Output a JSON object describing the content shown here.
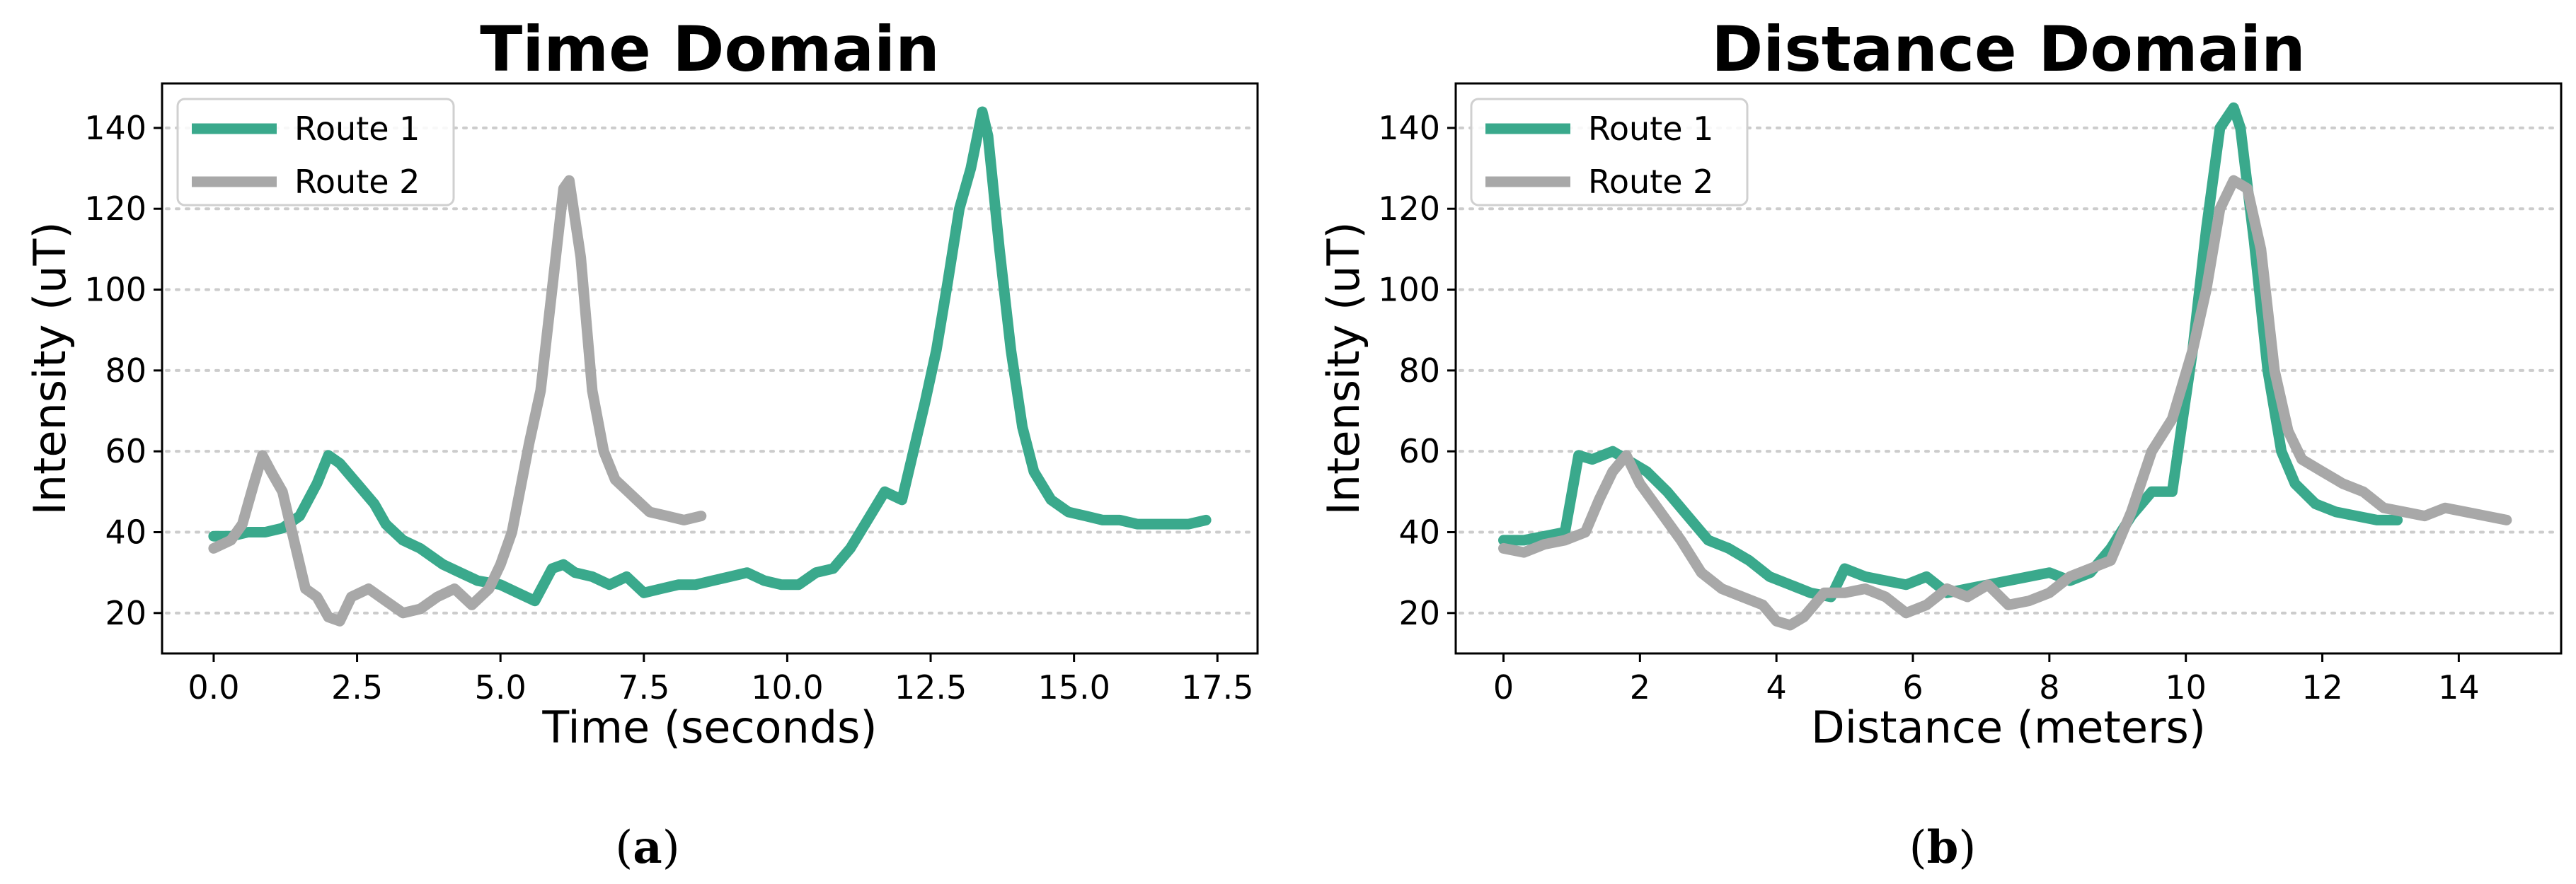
{
  "chart_data": [
    {
      "type": "line",
      "title": "Time Domain",
      "xlabel": "Time (seconds)",
      "ylabel": "Intensity (uT)",
      "caption_letter": "a",
      "xlim": [
        -0.9,
        18.2
      ],
      "ylim": [
        10,
        151
      ],
      "xticks": [
        0.0,
        2.5,
        5.0,
        7.5,
        10.0,
        12.5,
        15.0,
        17.5
      ],
      "xtick_labels": [
        "0.0",
        "2.5",
        "5.0",
        "7.5",
        "10.0",
        "12.5",
        "15.0",
        "17.5"
      ],
      "yticks": [
        20,
        40,
        60,
        80,
        100,
        120,
        140
      ],
      "ytick_labels": [
        "20",
        "40",
        "60",
        "80",
        "100",
        "120",
        "140"
      ],
      "grid": "y-dotted",
      "legend_position": "top-left",
      "series": [
        {
          "name": "Route 1",
          "color": "#3aa98c",
          "x": [
            0.0,
            0.3,
            0.6,
            0.9,
            1.2,
            1.5,
            1.8,
            2.0,
            2.2,
            2.5,
            2.8,
            3.0,
            3.3,
            3.6,
            4.0,
            4.3,
            4.6,
            5.0,
            5.3,
            5.6,
            5.9,
            6.1,
            6.3,
            6.6,
            6.9,
            7.2,
            7.5,
            7.8,
            8.1,
            8.4,
            8.7,
            9.0,
            9.3,
            9.6,
            9.9,
            10.2,
            10.5,
            10.8,
            11.1,
            11.4,
            11.7,
            12.0,
            12.2,
            12.4,
            12.6,
            12.8,
            13.0,
            13.2,
            13.4,
            13.5,
            13.7,
            13.9,
            14.1,
            14.3,
            14.6,
            14.9,
            15.2,
            15.5,
            15.8,
            16.1,
            16.4,
            16.7,
            17.0,
            17.3
          ],
          "y": [
            39,
            39,
            40,
            40,
            41,
            44,
            52,
            59,
            57,
            52,
            47,
            42,
            38,
            36,
            32,
            30,
            28,
            27,
            25,
            23,
            31,
            32,
            30,
            29,
            27,
            29,
            25,
            26,
            27,
            27,
            28,
            29,
            30,
            28,
            27,
            27,
            30,
            31,
            36,
            43,
            50,
            48,
            60,
            72,
            85,
            102,
            120,
            130,
            144,
            138,
            110,
            85,
            66,
            55,
            48,
            45,
            44,
            43,
            43,
            42,
            42,
            42,
            42,
            43
          ]
        },
        {
          "name": "Route 2",
          "color": "#a8a8a8",
          "x": [
            0.0,
            0.3,
            0.5,
            0.7,
            0.85,
            1.0,
            1.2,
            1.4,
            1.6,
            1.8,
            2.0,
            2.2,
            2.4,
            2.7,
            3.0,
            3.3,
            3.6,
            3.9,
            4.2,
            4.5,
            4.8,
            5.0,
            5.2,
            5.5,
            5.7,
            5.9,
            6.1,
            6.2,
            6.4,
            6.6,
            6.8,
            7.0,
            7.3,
            7.6,
            7.9,
            8.2,
            8.5
          ],
          "y": [
            36,
            38,
            42,
            52,
            59,
            55,
            50,
            38,
            26,
            24,
            19,
            18,
            24,
            26,
            23,
            20,
            21,
            24,
            26,
            22,
            26,
            32,
            40,
            62,
            75,
            100,
            125,
            127,
            108,
            75,
            60,
            53,
            49,
            45,
            44,
            43,
            44
          ]
        }
      ]
    },
    {
      "type": "line",
      "title": "Distance Domain",
      "xlabel": "Distance (meters)",
      "ylabel": "Intensity (uT)",
      "caption_letter": "b",
      "xlim": [
        -0.7,
        15.5
      ],
      "ylim": [
        10,
        151
      ],
      "xticks": [
        0,
        2,
        4,
        6,
        8,
        10,
        12,
        14
      ],
      "xtick_labels": [
        "0",
        "2",
        "4",
        "6",
        "8",
        "10",
        "12",
        "14"
      ],
      "yticks": [
        20,
        40,
        60,
        80,
        100,
        120,
        140
      ],
      "ytick_labels": [
        "20",
        "40",
        "60",
        "80",
        "100",
        "120",
        "140"
      ],
      "grid": "y-dotted",
      "legend_position": "top-left",
      "series": [
        {
          "name": "Route 1",
          "color": "#3aa98c",
          "x": [
            0.0,
            0.3,
            0.6,
            0.9,
            1.1,
            1.3,
            1.6,
            1.8,
            2.1,
            2.4,
            2.7,
            3.0,
            3.3,
            3.6,
            3.9,
            4.2,
            4.5,
            4.8,
            5.0,
            5.3,
            5.6,
            5.9,
            6.2,
            6.5,
            6.8,
            7.1,
            7.4,
            7.7,
            8.0,
            8.3,
            8.6,
            8.9,
            9.2,
            9.5,
            9.8,
            10.1,
            10.3,
            10.5,
            10.7,
            10.8,
            11.0,
            11.2,
            11.4,
            11.6,
            11.9,
            12.2,
            12.5,
            12.8,
            13.1
          ],
          "y": [
            38,
            38,
            39,
            40,
            59,
            58,
            60,
            58,
            55,
            50,
            44,
            38,
            36,
            33,
            29,
            27,
            25,
            24,
            31,
            29,
            28,
            27,
            29,
            25,
            26,
            27,
            28,
            29,
            30,
            28,
            30,
            36,
            44,
            50,
            50,
            85,
            115,
            140,
            145,
            140,
            112,
            80,
            60,
            52,
            47,
            45,
            44,
            43,
            43
          ]
        },
        {
          "name": "Route 2",
          "color": "#a8a8a8",
          "x": [
            0.0,
            0.3,
            0.6,
            0.9,
            1.2,
            1.4,
            1.6,
            1.8,
            2.0,
            2.3,
            2.6,
            2.9,
            3.2,
            3.5,
            3.8,
            4.0,
            4.2,
            4.4,
            4.7,
            5.0,
            5.3,
            5.6,
            5.9,
            6.2,
            6.5,
            6.8,
            7.1,
            7.4,
            7.7,
            8.0,
            8.3,
            8.6,
            8.9,
            9.2,
            9.5,
            9.8,
            10.1,
            10.3,
            10.5,
            10.7,
            10.9,
            11.1,
            11.3,
            11.5,
            11.7,
            12.0,
            12.3,
            12.6,
            12.9,
            13.2,
            13.5,
            13.8,
            14.1,
            14.4,
            14.7
          ],
          "y": [
            36,
            35,
            37,
            38,
            40,
            48,
            55,
            59,
            52,
            45,
            38,
            30,
            26,
            24,
            22,
            18,
            17,
            19,
            25,
            25,
            26,
            24,
            20,
            22,
            26,
            24,
            27,
            22,
            23,
            25,
            29,
            31,
            33,
            45,
            60,
            68,
            85,
            100,
            120,
            127,
            125,
            110,
            80,
            65,
            58,
            55,
            52,
            50,
            46,
            45,
            44,
            46,
            45,
            44,
            43
          ]
        }
      ]
    }
  ]
}
